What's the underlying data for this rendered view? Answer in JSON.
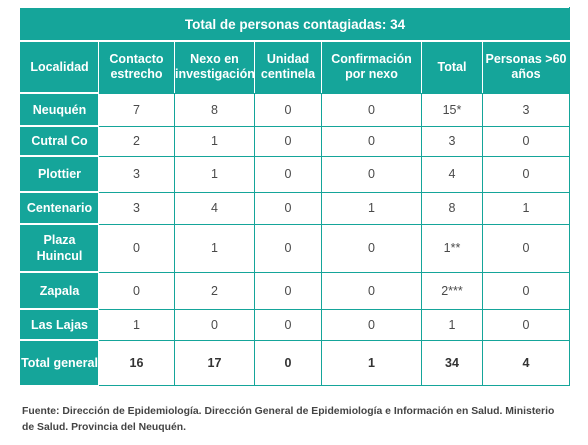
{
  "title": "Total de personas contagiadas: 34",
  "headers": [
    "Localidad",
    "Contacto estrecho",
    "Nexo en investigación",
    "Unidad centinela",
    "Confirmación por nexo",
    "Total",
    "Personas >60 años"
  ],
  "rows": [
    {
      "localidad": "Neuquén",
      "values": [
        "7",
        "8",
        "0",
        "0",
        "15*",
        "3"
      ]
    },
    {
      "localidad": "Cutral Co",
      "values": [
        "2",
        "1",
        "0",
        "0",
        "3",
        "0"
      ]
    },
    {
      "localidad": "Plottier",
      "values": [
        "3",
        "1",
        "0",
        "0",
        "4",
        "0"
      ]
    },
    {
      "localidad": "Centenario",
      "values": [
        "3",
        "4",
        "0",
        "1",
        "8",
        "1"
      ]
    },
    {
      "localidad": "Plaza Huincul",
      "values": [
        "0",
        "1",
        "0",
        "0",
        "1**",
        "0"
      ]
    },
    {
      "localidad": "Zapala",
      "values": [
        "0",
        "2",
        "0",
        "0",
        "2***",
        "0"
      ]
    },
    {
      "localidad": "Las Lajas",
      "values": [
        "1",
        "0",
        "0",
        "0",
        "1",
        "0"
      ]
    }
  ],
  "total_row": {
    "localidad": "Total general",
    "values": [
      "16",
      "17",
      "0",
      "1",
      "34",
      "4"
    ]
  },
  "source": "Fuente: Dirección de Epidemiología. Dirección General de Epidemiología e Información en Salud. Ministerio de Salud. Provincia del Neuquén.",
  "colors": {
    "teal": "#15a59a",
    "text": "#4a4a4a"
  }
}
